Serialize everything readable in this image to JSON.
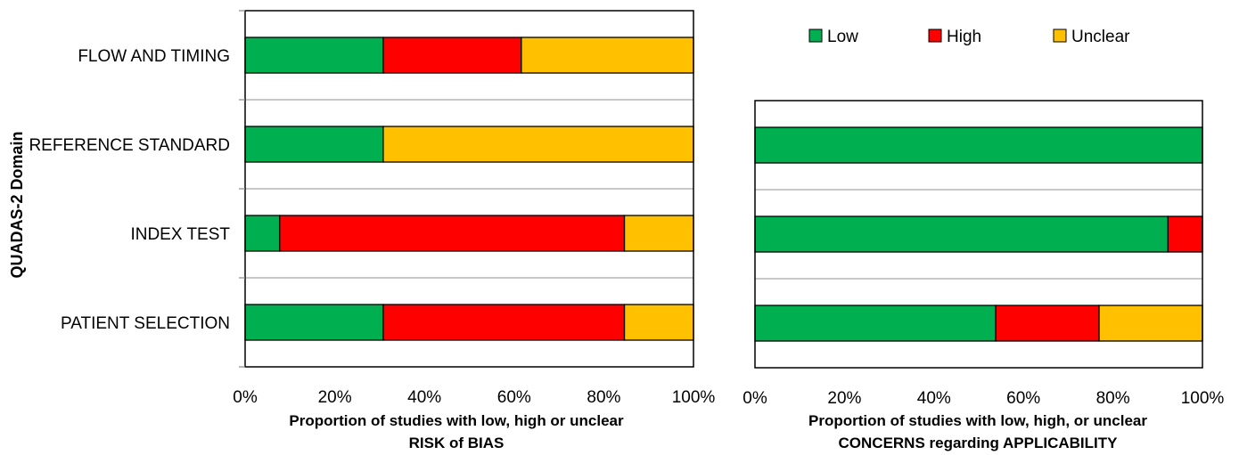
{
  "colors": {
    "Low": "#00b050",
    "High": "#ff0000",
    "Unclear": "#ffc000"
  },
  "chart_data": [
    {
      "type": "bar",
      "orientation": "horizontal",
      "stacked": true,
      "ylabel": "QUADAS-2 Domain",
      "xlabel_lines": [
        "Proportion of studies with low, high or unclear",
        "RISK of BIAS"
      ],
      "categories": [
        "FLOW AND TIMING",
        "REFERENCE STANDARD",
        "INDEX TEST",
        "PATIENT SELECTION"
      ],
      "series": [
        {
          "name": "Low",
          "values": [
            30.8,
            30.8,
            7.7,
            30.8
          ]
        },
        {
          "name": "High",
          "values": [
            30.8,
            0,
            76.9,
            53.8
          ]
        },
        {
          "name": "Unclear",
          "values": [
            38.4,
            69.2,
            15.4,
            15.4
          ]
        }
      ],
      "xlim": [
        0,
        100
      ],
      "xticks": [
        "0%",
        "20%",
        "40%",
        "60%",
        "80%",
        "100%"
      ],
      "grid": "horizontal"
    },
    {
      "type": "bar",
      "orientation": "horizontal",
      "stacked": true,
      "xlabel_lines": [
        "Proportion of studies with low, high, or unclear",
        "CONCERNS regarding APPLICABILITY"
      ],
      "categories": [
        "REFERENCE STANDARD",
        "INDEX TEST",
        "PATIENT SELECTION"
      ],
      "series": [
        {
          "name": "Low",
          "values": [
            100,
            92.3,
            53.8
          ]
        },
        {
          "name": "High",
          "values": [
            0,
            7.7,
            23.1
          ]
        },
        {
          "name": "Unclear",
          "values": [
            0,
            0,
            23.1
          ]
        }
      ],
      "xlim": [
        0,
        100
      ],
      "xticks": [
        "0%",
        "20%",
        "40%",
        "60%",
        "80%",
        "100%"
      ],
      "grid": "horizontal",
      "legend": {
        "position": "top",
        "entries": [
          "Low",
          "High",
          "Unclear"
        ]
      }
    }
  ]
}
